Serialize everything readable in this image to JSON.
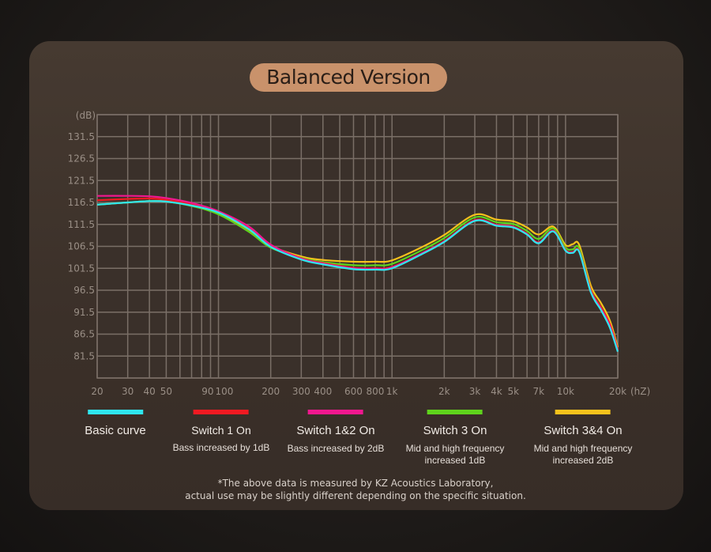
{
  "chart_data": {
    "type": "line",
    "title": "Balanced Version",
    "ylabel": "(dB)",
    "xlabel": "(hZ)",
    "xscale": "log",
    "xlim": [
      20,
      20000
    ],
    "ylim": [
      76.5,
      136.5
    ],
    "grid": true,
    "yticks": [
      131.5,
      126.5,
      121.5,
      116.5,
      111.5,
      106.5,
      101.5,
      96.5,
      91.5,
      86.5,
      81.5
    ],
    "xticks": [
      {
        "v": 20,
        "label": "20"
      },
      {
        "v": 30,
        "label": "30"
      },
      {
        "v": 40,
        "label": "40"
      },
      {
        "v": 50,
        "label": "50"
      },
      {
        "v": 90,
        "label": "90"
      },
      {
        "v": 100,
        "label": "100"
      },
      {
        "v": 200,
        "label": "200"
      },
      {
        "v": 300,
        "label": "300"
      },
      {
        "v": 400,
        "label": "400"
      },
      {
        "v": 600,
        "label": "600"
      },
      {
        "v": 800,
        "label": "800"
      },
      {
        "v": 1000,
        "label": "1k"
      },
      {
        "v": 2000,
        "label": "2k"
      },
      {
        "v": 3000,
        "label": "3k"
      },
      {
        "v": 4000,
        "label": "4k"
      },
      {
        "v": 5000,
        "label": "5k"
      },
      {
        "v": 7000,
        "label": "7k"
      },
      {
        "v": 10000,
        "label": "10k"
      },
      {
        "v": 20000,
        "label": "20k"
      }
    ],
    "x": [
      20,
      30,
      40,
      50,
      70,
      100,
      150,
      200,
      300,
      400,
      600,
      800,
      1000,
      1500,
      2000,
      3000,
      4000,
      5000,
      6000,
      7000,
      8500,
      10000,
      11000,
      12000,
      14000,
      16000,
      18000,
      20000
    ],
    "series": [
      {
        "name": "Basic curve",
        "desc": [
          "",
          ""
        ],
        "color": "#2fe6f0",
        "values": [
          116.0,
          116.5,
          116.8,
          116.7,
          115.8,
          114.2,
          110.4,
          106.4,
          103.5,
          102.4,
          101.3,
          101.2,
          101.5,
          104.8,
          107.5,
          112.3,
          111.2,
          110.8,
          109.2,
          107.2,
          109.9,
          105.5,
          105.0,
          105.2,
          96.0,
          92.0,
          88.0,
          82.5
        ]
      },
      {
        "name": "Switch 1 On",
        "desc": [
          "Bass increased by 1dB",
          ""
        ],
        "color": "#f01a22",
        "values": [
          117.0,
          117.3,
          117.4,
          117.1,
          116.1,
          114.4,
          110.9,
          106.8,
          103.8,
          102.7,
          101.6,
          101.5,
          101.8,
          105.0,
          107.7,
          112.5,
          111.4,
          111.0,
          109.4,
          107.4,
          110.1,
          105.7,
          105.2,
          105.4,
          96.5,
          92.6,
          88.8,
          83.0
        ]
      },
      {
        "name": "Switch 1&2 On",
        "desc": [
          "Bass increased by 2dB",
          ""
        ],
        "color": "#f0178f",
        "values": [
          118.0,
          118.0,
          117.9,
          117.5,
          116.4,
          114.5,
          111.0,
          106.9,
          103.7,
          102.6,
          101.5,
          101.4,
          101.7,
          105.0,
          107.6,
          112.4,
          111.3,
          110.9,
          109.3,
          107.3,
          110.0,
          105.6,
          105.1,
          105.3,
          96.2,
          92.3,
          88.4,
          82.8
        ]
      },
      {
        "name": "Switch 3 On",
        "desc": [
          "Mid and high frequency",
          "increased 1dB"
        ],
        "color": "#5fd31c",
        "values": [
          116.0,
          116.5,
          116.8,
          116.7,
          115.7,
          113.8,
          109.8,
          106.2,
          103.9,
          102.9,
          102.2,
          102.2,
          102.5,
          105.7,
          108.4,
          113.1,
          112.0,
          111.6,
          110.0,
          108.2,
          110.6,
          106.2,
          105.8,
          106.0,
          96.6,
          92.6,
          88.6,
          83.0
        ]
      },
      {
        "name": "Switch 3&4 On",
        "desc": [
          "Mid and high frequency",
          "increased 2dB"
        ],
        "color": "#f6c21c",
        "values": [
          116.0,
          116.5,
          116.8,
          116.7,
          115.8,
          114.1,
          110.3,
          106.6,
          104.2,
          103.4,
          103.0,
          103.0,
          103.3,
          106.4,
          109.1,
          113.7,
          112.6,
          112.2,
          110.8,
          109.2,
          111.0,
          106.8,
          107.0,
          106.8,
          97.5,
          93.6,
          89.6,
          83.5
        ]
      }
    ]
  },
  "note": {
    "line1": "*The above data is measured by KZ Acoustics Laboratory,",
    "line2": "actual use may be slightly different depending on the specific situation."
  }
}
